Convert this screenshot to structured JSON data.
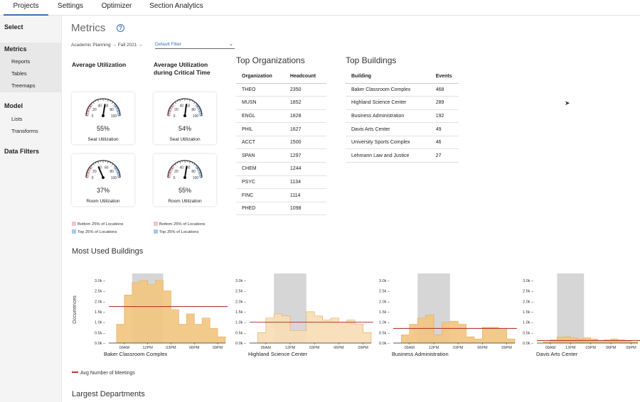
{
  "tabs": [
    {
      "label": "Projects",
      "active": true
    },
    {
      "label": "Settings",
      "active": false
    },
    {
      "label": "Optimizer",
      "active": false
    },
    {
      "label": "Section Analytics",
      "active": false
    }
  ],
  "sidebar": {
    "select": "Select",
    "metrics": "Metrics",
    "metrics_items": [
      "Reports",
      "Tables",
      "Treemaps"
    ],
    "model": "Model",
    "model_items": [
      "Lists",
      "Transforms"
    ],
    "data_filters": "Data Filters"
  },
  "header": {
    "title": "Metrics",
    "help_icon": "?",
    "breadcrumb": "Academic Planning → Fall 2021 →",
    "filter_value": "Default Filter"
  },
  "utilization": {
    "avg_title": "Average Utilization",
    "critical_title": "Average Utilization during Critical Time",
    "gauge_ticks": [
      "0",
      "20",
      "40",
      "60",
      "80",
      "100"
    ],
    "gauges": [
      {
        "pct_label": "55%",
        "value": 55,
        "label": "Seat Utilization"
      },
      {
        "pct_label": "54%",
        "value": 54,
        "label": "Seat Utilization"
      },
      {
        "pct_label": "37%",
        "value": 37,
        "label": "Room Utilization"
      },
      {
        "pct_label": "55%",
        "value": 55,
        "label": "Room Utilization"
      }
    ],
    "legend": {
      "bottom": "Bottom 25% of Locations",
      "top": "Top 25% of Locations",
      "bottom_color": "#efc4c6",
      "top_color": "#a9c8e6"
    }
  },
  "top_orgs": {
    "title": "Top Organizations",
    "headers": [
      "Organization",
      "Headcount"
    ],
    "rows": [
      [
        "THEO",
        "2350"
      ],
      [
        "MUSN",
        "1852"
      ],
      [
        "ENGL",
        "1828"
      ],
      [
        "PHIL",
        "1627"
      ],
      [
        "ACCT",
        "1500"
      ],
      [
        "SPAN",
        "1297"
      ],
      [
        "CHEM",
        "1244"
      ],
      [
        "PSYC",
        "1134"
      ],
      [
        "FINC",
        "1114"
      ],
      [
        "PHED",
        "1098"
      ]
    ]
  },
  "top_buildings": {
    "title": "Top Buildings",
    "headers": [
      "Building",
      "Events"
    ],
    "rows": [
      [
        "Baker Classroom Complex",
        "468"
      ],
      [
        "Highland Science Center",
        "289"
      ],
      [
        "Business Administration",
        "192"
      ],
      [
        "Davis Arts Center",
        "49"
      ],
      [
        "University Sports Complex",
        "46"
      ],
      [
        "Lehmann Law and Justice",
        "27"
      ]
    ]
  },
  "most_used": {
    "title": "Most Used Buildings",
    "avg_legend": "Avg Number of Meetings",
    "colors": {
      "area": "#f1c580",
      "area_light": "#f7ddb6",
      "area_stroke": "#e6a955",
      "avg_line": "#b83a2e",
      "shade": "#d6d6d6"
    }
  },
  "chart_data": [
    {
      "type": "area",
      "title": "Baker Classroom Complex",
      "ylabel": "Occurrences",
      "y_ticks": [
        "3.0k",
        "2.5k",
        "2.0k",
        "1.5k",
        "1.0k",
        "0.5k",
        "0.0k"
      ],
      "x_ticks": [
        "09AM",
        "12PM",
        "03PM",
        "06PM",
        "09PM"
      ],
      "x": [
        "07AM",
        "08AM",
        "09AM",
        "10AM",
        "11AM",
        "12PM",
        "01PM",
        "02PM",
        "03PM",
        "04PM",
        "05PM",
        "06PM",
        "07PM",
        "08PM",
        "09PM",
        "10PM"
      ],
      "values": [
        0,
        900,
        2300,
        2900,
        3000,
        2800,
        3000,
        2500,
        1600,
        900,
        1400,
        900,
        1200,
        700,
        300,
        0
      ],
      "avg": 1750,
      "highlight": [
        "10AM",
        "02PM"
      ],
      "ylim": [
        0,
        3200
      ]
    },
    {
      "type": "area",
      "title": "Highland Science Center",
      "y_ticks": [
        "3.0k",
        "2.5k",
        "2.0k",
        "1.5k",
        "1.0k",
        "0.5k",
        "0.0k"
      ],
      "x_ticks": [
        "09AM",
        "12PM",
        "03PM",
        "06PM",
        "09PM"
      ],
      "x": [
        "07AM",
        "08AM",
        "09AM",
        "10AM",
        "11AM",
        "12PM",
        "01PM",
        "02PM",
        "03PM",
        "04PM",
        "05PM",
        "06PM",
        "07PM",
        "08PM",
        "09PM",
        "10PM"
      ],
      "values": [
        0,
        500,
        1200,
        1400,
        1300,
        600,
        600,
        1500,
        1300,
        1100,
        1200,
        1000,
        1100,
        900,
        500,
        0
      ],
      "avg": 1000,
      "highlight": [
        "10AM",
        "02PM"
      ],
      "ylim": [
        0,
        3200
      ]
    },
    {
      "type": "area",
      "title": "Business Administration",
      "y_ticks": [
        "3.0k",
        "2.5k",
        "2.0k",
        "1.5k",
        "1.0k",
        "0.5k",
        "0.0k"
      ],
      "x_ticks": [
        "09AM",
        "12PM",
        "03PM",
        "06PM",
        "09PM"
      ],
      "x": [
        "07AM",
        "08AM",
        "09AM",
        "10AM",
        "11AM",
        "12PM",
        "01PM",
        "02PM",
        "03PM",
        "04PM",
        "05PM",
        "06PM",
        "07PM",
        "08PM",
        "09PM",
        "10PM"
      ],
      "values": [
        0,
        400,
        900,
        1200,
        1350,
        400,
        1000,
        1050,
        900,
        300,
        200,
        750,
        750,
        700,
        200,
        0
      ],
      "avg": 700,
      "highlight": [
        "10AM",
        "02PM"
      ],
      "ylim": [
        0,
        3200
      ]
    },
    {
      "type": "area",
      "title": "Davis Arts Center",
      "y_ticks": [
        "3.0k",
        "2.5k",
        "2.0k",
        "1.5k",
        "1.0k",
        "0.5k",
        "0.0k"
      ],
      "x_ticks": [
        "09AM",
        "12PM",
        "03PM",
        "06PM",
        "09PM"
      ],
      "x": [
        "07AM",
        "08AM",
        "09AM",
        "10AM",
        "11AM",
        "12PM",
        "01PM",
        "02PM",
        "03PM",
        "04PM",
        "05PM",
        "06PM",
        "07PM",
        "08PM",
        "09PM",
        "10PM"
      ],
      "values": [
        0,
        60,
        150,
        280,
        300,
        260,
        200,
        250,
        200,
        80,
        150,
        200,
        150,
        100,
        50,
        0
      ],
      "avg": 120,
      "highlight": [
        "10AM",
        "02PM"
      ],
      "ylim": [
        0,
        3200
      ]
    }
  ],
  "largest_departments": {
    "title": "Largest Departments"
  }
}
